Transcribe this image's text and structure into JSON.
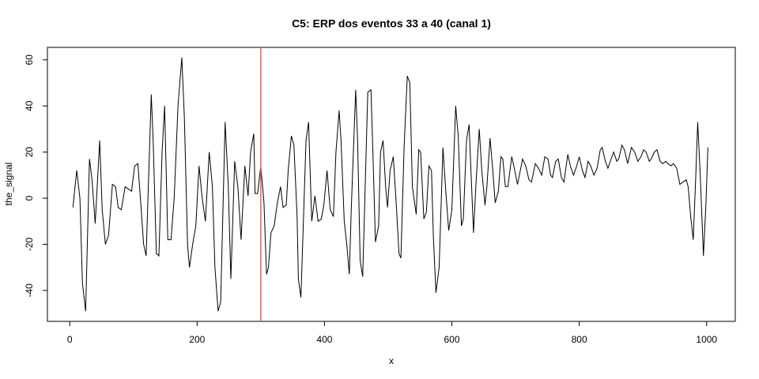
{
  "chart_data": {
    "type": "line",
    "title": "C5: ERP dos eventos 33 a 40 (canal 1)",
    "x_label": "x",
    "y_label": "the_signal",
    "color": "#000000",
    "x": [
      5,
      11,
      16,
      20,
      25,
      31,
      35,
      40,
      47,
      51,
      56,
      61,
      67,
      72,
      76,
      81,
      87,
      92,
      97,
      102,
      107,
      112,
      116,
      120,
      128,
      131,
      136,
      140,
      145,
      149,
      154,
      159,
      164,
      170,
      176,
      180,
      185,
      188,
      193,
      198,
      203,
      208,
      213,
      219,
      224,
      228,
      233,
      237,
      244,
      249,
      253,
      259,
      264,
      269,
      275,
      280,
      284,
      289,
      291,
      295,
      300,
      305,
      309,
      312,
      316,
      321,
      326,
      331,
      335,
      340,
      343,
      348,
      352,
      357,
      359,
      363,
      371,
      375,
      380,
      385,
      390,
      395,
      399,
      404,
      409,
      414,
      418,
      423,
      426,
      431,
      435,
      439,
      442,
      449,
      452,
      456,
      460,
      465,
      468,
      473,
      476,
      480,
      485,
      488,
      492,
      496,
      499,
      503,
      508,
      513,
      517,
      520,
      525,
      530,
      534,
      538,
      544,
      548,
      551,
      556,
      560,
      564,
      568,
      571,
      575,
      580,
      586,
      590,
      595,
      600,
      606,
      610,
      615,
      618,
      623,
      627,
      631,
      634,
      638,
      643,
      647,
      652,
      655,
      660,
      664,
      668,
      673,
      677,
      680,
      684,
      688,
      694,
      698,
      703,
      706,
      711,
      716,
      721,
      725,
      731,
      736,
      741,
      746,
      751,
      755,
      758,
      763,
      767,
      772,
      776,
      782,
      786,
      791,
      796,
      800,
      805,
      809,
      814,
      818,
      823,
      828,
      833,
      836,
      841,
      845,
      850,
      854,
      859,
      862,
      867,
      871,
      876,
      882,
      887,
      892,
      897,
      901,
      905,
      910,
      913,
      918,
      922,
      927,
      931,
      936,
      939,
      944,
      948,
      953,
      958,
      963,
      968,
      971,
      975,
      979,
      983,
      986,
      990,
      995,
      999,
      1002
    ],
    "values": [
      -4,
      12,
      0,
      -37,
      -49,
      17,
      8,
      -11,
      25,
      -5,
      -20,
      -16,
      6,
      5,
      -4,
      -5,
      5,
      4,
      3,
      14,
      15,
      -4,
      -20,
      -25,
      45,
      25,
      -24,
      -25,
      20,
      40,
      -18,
      -18,
      0,
      40,
      61,
      35,
      -20,
      -30,
      -20,
      -12,
      14,
      0,
      -10,
      20,
      5,
      -30,
      -49,
      -45,
      33,
      5,
      -35,
      16,
      5,
      -18,
      14,
      1,
      20,
      28,
      2,
      2,
      14,
      -2,
      -33,
      -30,
      -15,
      -12,
      -2,
      5,
      -4,
      -3,
      12,
      27,
      23,
      -8,
      -35,
      -43,
      25,
      33,
      -10,
      1,
      -10,
      -9,
      -3,
      12,
      -5,
      -8,
      20,
      38,
      25,
      -10,
      -20,
      -33,
      -5,
      47,
      25,
      -27,
      -34,
      16,
      46,
      47,
      20,
      -19,
      -12,
      20,
      25,
      5,
      -4,
      12,
      18,
      -4,
      -24,
      -26,
      22,
      53,
      50,
      5,
      -7,
      21,
      20,
      -9,
      -6,
      14,
      12,
      -17,
      -41,
      -30,
      22,
      5,
      -14,
      -5,
      40,
      27,
      -12,
      -9,
      25,
      32,
      5,
      -15,
      7,
      30,
      12,
      -3,
      5,
      26,
      13,
      -2,
      3,
      18,
      17,
      5,
      5,
      18,
      13,
      6,
      10,
      17,
      14,
      8,
      7,
      15,
      13,
      10,
      18,
      17,
      10,
      9,
      16,
      17,
      9,
      7,
      19,
      14,
      10,
      14,
      18,
      12,
      9,
      16,
      14,
      10,
      13,
      21,
      22,
      16,
      13,
      17,
      20,
      16,
      17,
      23,
      21,
      15,
      22,
      20,
      16,
      18,
      21,
      20,
      16,
      17,
      20,
      21,
      16,
      15,
      16,
      15,
      14,
      15,
      13,
      6,
      7,
      8,
      5,
      -8,
      -18,
      10,
      33,
      10,
      -25,
      -2,
      22
    ],
    "xlim": [
      -35,
      1045
    ],
    "ylim": [
      -53.4,
      65.4
    ],
    "xticks": [
      0,
      200,
      400,
      600,
      800,
      1000
    ],
    "yticks": [
      -40,
      -20,
      0,
      20,
      40,
      60
    ],
    "vline": {
      "x": 300,
      "color": "#e06060"
    }
  }
}
